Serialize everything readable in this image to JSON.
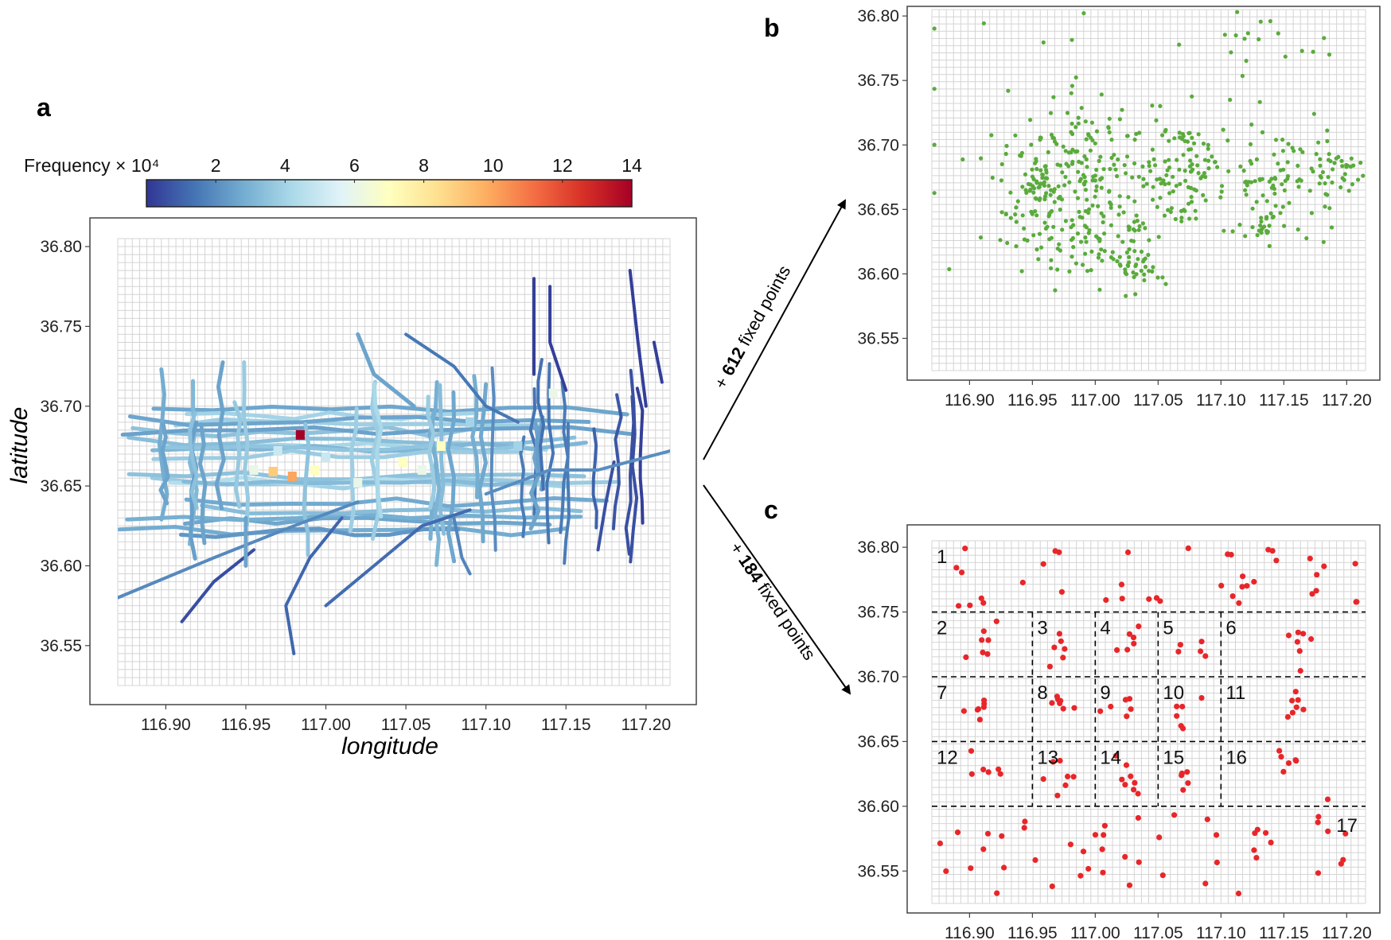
{
  "chart_data": [
    {
      "panel": "a",
      "type": "heatmap",
      "title": "",
      "xlabel": "longitude",
      "ylabel": "latitude",
      "xlim": [
        116.87,
        117.215
      ],
      "ylim": [
        36.525,
        36.805
      ],
      "xticks": [
        "116.90",
        "116.95",
        "117.00",
        "117.05",
        "117.10",
        "117.15",
        "117.20"
      ],
      "yticks": [
        "36.55",
        "36.60",
        "36.65",
        "36.70",
        "36.75",
        "36.80"
      ],
      "grid": true,
      "legend": {
        "title": "Frequency × 10⁴",
        "ticks": [
          "2",
          "4",
          "6",
          "8",
          "10",
          "12",
          "14"
        ],
        "range": [
          0,
          14
        ],
        "colors": [
          "#313695",
          "#4575b4",
          "#74add1",
          "#abd9e9",
          "#e0f3f8",
          "#ffffbf",
          "#fee090",
          "#fdae61",
          "#f46d43",
          "#d73027",
          "#a50026"
        ]
      },
      "hotspots": [
        {
          "lon": 116.984,
          "lat": 36.682,
          "value": 14
        },
        {
          "lon": 116.979,
          "lat": 36.656,
          "value": 10
        },
        {
          "lon": 116.967,
          "lat": 36.659,
          "value": 9
        },
        {
          "lon": 116.993,
          "lat": 36.66,
          "value": 7
        },
        {
          "lon": 116.955,
          "lat": 36.66,
          "value": 6
        },
        {
          "lon": 117.048,
          "lat": 36.665,
          "value": 7
        },
        {
          "lon": 117.06,
          "lat": 36.66,
          "value": 6
        },
        {
          "lon": 117.072,
          "lat": 36.675,
          "value": 7
        },
        {
          "lon": 117.02,
          "lat": 36.652,
          "value": 6
        },
        {
          "lon": 117.142,
          "lat": 36.708,
          "value": 6
        },
        {
          "lon": 116.97,
          "lat": 36.672,
          "value": 5
        },
        {
          "lon": 117.0,
          "lat": 36.668,
          "value": 5
        },
        {
          "lon": 117.12,
          "lat": 36.675,
          "value": 4
        },
        {
          "lon": 117.09,
          "lat": 36.69,
          "value": 4
        }
      ]
    },
    {
      "panel": "b",
      "type": "scatter",
      "title": "",
      "annotation_count": "612",
      "annotation_text": "fixed points",
      "xlim": [
        116.87,
        117.215
      ],
      "ylim": [
        36.525,
        36.805
      ],
      "xticks": [
        "116.90",
        "116.95",
        "117.00",
        "117.05",
        "117.10",
        "117.15",
        "117.20"
      ],
      "yticks": [
        "36.55",
        "36.60",
        "36.65",
        "36.70",
        "36.75",
        "36.80"
      ],
      "point_color": "#5aab3c",
      "clusters": [
        {
          "lon": 116.96,
          "lat": 36.665,
          "sd_lon": 0.022,
          "sd_lat": 0.025,
          "n": 150
        },
        {
          "lon": 117.0,
          "lat": 36.69,
          "sd_lon": 0.018,
          "sd_lat": 0.02,
          "n": 70
        },
        {
          "lon": 117.01,
          "lat": 36.625,
          "sd_lon": 0.018,
          "sd_lat": 0.018,
          "n": 70
        },
        {
          "lon": 117.035,
          "lat": 36.605,
          "sd_lon": 0.01,
          "sd_lat": 0.008,
          "n": 25
        },
        {
          "lon": 117.06,
          "lat": 36.67,
          "sd_lon": 0.02,
          "sd_lat": 0.02,
          "n": 80
        },
        {
          "lon": 117.075,
          "lat": 36.695,
          "sd_lon": 0.01,
          "sd_lat": 0.01,
          "n": 30
        },
        {
          "lon": 117.145,
          "lat": 36.675,
          "sd_lon": 0.025,
          "sd_lat": 0.02,
          "n": 90
        },
        {
          "lon": 117.133,
          "lat": 36.636,
          "sd_lon": 0.006,
          "sd_lat": 0.006,
          "n": 20
        },
        {
          "lon": 117.195,
          "lat": 36.68,
          "sd_lon": 0.01,
          "sd_lat": 0.012,
          "n": 30
        },
        {
          "lon": 117.13,
          "lat": 36.78,
          "sd_lon": 0.03,
          "sd_lat": 0.015,
          "n": 18
        },
        {
          "lon": 116.98,
          "lat": 36.72,
          "sd_lon": 0.06,
          "sd_lat": 0.05,
          "n": 29
        }
      ]
    },
    {
      "panel": "c",
      "type": "scatter",
      "title": "",
      "annotation_count": "184",
      "annotation_text": "fixed points",
      "xlim": [
        116.87,
        117.215
      ],
      "ylim": [
        36.525,
        36.805
      ],
      "xticks": [
        "116.90",
        "116.95",
        "117.00",
        "117.05",
        "117.10",
        "117.15",
        "117.20"
      ],
      "yticks": [
        "36.55",
        "36.60",
        "36.65",
        "36.70",
        "36.75",
        "36.80"
      ],
      "point_color": "#e8262a",
      "region_boundaries_lat": [
        36.75,
        36.7,
        36.65,
        36.6
      ],
      "region_boundaries_lon": [
        116.95,
        117.0,
        117.05,
        117.1
      ],
      "regions": [
        {
          "label": "1",
          "lon0": 116.87,
          "lon1": 117.215,
          "lat0": 36.75,
          "lat1": 36.805,
          "n": 40
        },
        {
          "label": "2",
          "lon0": 116.87,
          "lon1": 116.95,
          "lat0": 36.7,
          "lat1": 36.75,
          "n": 7
        },
        {
          "label": "3",
          "lon0": 116.95,
          "lon1": 117.0,
          "lat0": 36.7,
          "lat1": 36.75,
          "n": 6
        },
        {
          "label": "4",
          "lon0": 117.0,
          "lon1": 117.05,
          "lat0": 36.7,
          "lat1": 36.75,
          "n": 6
        },
        {
          "label": "5",
          "lon0": 117.05,
          "lon1": 117.1,
          "lat0": 36.7,
          "lat1": 36.75,
          "n": 5
        },
        {
          "label": "6",
          "lon0": 117.1,
          "lon1": 117.215,
          "lat0": 36.7,
          "lat1": 36.75,
          "n": 7
        },
        {
          "label": "7",
          "lon0": 116.87,
          "lon1": 116.95,
          "lat0": 36.65,
          "lat1": 36.7,
          "n": 7
        },
        {
          "label": "8",
          "lon0": 116.95,
          "lon1": 117.0,
          "lat0": 36.65,
          "lat1": 36.7,
          "n": 7
        },
        {
          "label": "9",
          "lon0": 117.0,
          "lon1": 117.05,
          "lat0": 36.65,
          "lat1": 36.7,
          "n": 6
        },
        {
          "label": "10",
          "lon0": 117.05,
          "lon1": 117.1,
          "lat0": 36.65,
          "lat1": 36.7,
          "n": 6
        },
        {
          "label": "11",
          "lon0": 117.1,
          "lon1": 117.215,
          "lat0": 36.65,
          "lat1": 36.7,
          "n": 7
        },
        {
          "label": "12",
          "lon0": 116.87,
          "lon1": 116.95,
          "lat0": 36.6,
          "lat1": 36.65,
          "n": 6
        },
        {
          "label": "13",
          "lon0": 116.95,
          "lon1": 117.0,
          "lat0": 36.6,
          "lat1": 36.65,
          "n": 7
        },
        {
          "label": "14",
          "lon0": 117.0,
          "lon1": 117.05,
          "lat0": 36.6,
          "lat1": 36.65,
          "n": 8
        },
        {
          "label": "15",
          "lon0": 117.05,
          "lon1": 117.1,
          "lat0": 36.6,
          "lat1": 36.65,
          "n": 5
        },
        {
          "label": "16",
          "lon0": 117.1,
          "lon1": 117.215,
          "lat0": 36.6,
          "lat1": 36.65,
          "n": 7
        },
        {
          "label": "17",
          "lon0": 116.87,
          "lon1": 117.215,
          "lat0": 36.525,
          "lat1": 36.6,
          "n": 47
        }
      ]
    }
  ]
}
